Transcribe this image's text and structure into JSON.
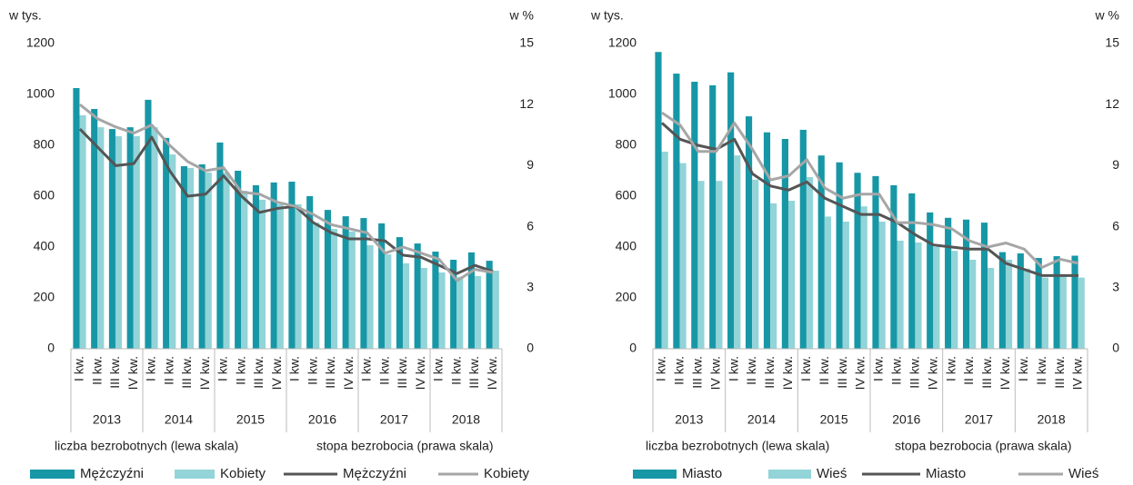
{
  "chart_data": [
    {
      "type": "bar",
      "ylabel": "w tys.",
      "y2label": "w %",
      "ylim": [
        0,
        1200
      ],
      "yticks": [
        0,
        200,
        400,
        600,
        800,
        1000,
        1200
      ],
      "y2lim": [
        0,
        15
      ],
      "y2ticks": [
        0,
        3,
        6,
        9,
        12,
        15
      ],
      "categories": [
        "I kw.",
        "II kw.",
        "III kw.",
        "IV kw.",
        "I kw.",
        "II kw.",
        "III kw.",
        "IV kw.",
        "I kw.",
        "II kw.",
        "III kw.",
        "IV kw.",
        "I kw.",
        "II kw.",
        "III kw.",
        "IV kw.",
        "I kw.",
        "II kw.",
        "III kw.",
        "IV kw.",
        "I kw.",
        "II kw.",
        "III kw.",
        "IV kw."
      ],
      "years": [
        "2013",
        "2014",
        "2015",
        "2016",
        "2017",
        "2018"
      ],
      "annotations": [
        "liczba bezrobotnych (lewa skala)",
        "stopa bezrobocia (prawa skala)"
      ],
      "series": [
        {
          "name": "Mężczyźni",
          "type": "bar",
          "color": "#1797a6",
          "values": [
            1025,
            943,
            864,
            871,
            979,
            829,
            718,
            725,
            811,
            700,
            643,
            654,
            657,
            600,
            546,
            521,
            514,
            493,
            439,
            414,
            382,
            350,
            379,
            346
          ]
        },
        {
          "name": "Kobiety",
          "type": "bar",
          "color": "#92d4d8",
          "values": [
            918,
            871,
            836,
            836,
            871,
            764,
            711,
            693,
            693,
            621,
            586,
            568,
            568,
            496,
            471,
            461,
            407,
            371,
            336,
            318,
            300,
            282,
            286,
            307
          ]
        },
        {
          "name": "Mężczyźni",
          "type": "line",
          "axis": "y2",
          "color": "#555555",
          "values": [
            10.8,
            9.9,
            9.0,
            9.1,
            10.4,
            8.75,
            7.5,
            7.6,
            8.5,
            7.5,
            6.7,
            6.9,
            7.0,
            6.2,
            5.7,
            5.4,
            5.4,
            5.3,
            4.6,
            4.5,
            4.1,
            3.7,
            4.1,
            3.8
          ]
        },
        {
          "name": "Kobiety",
          "type": "line",
          "axis": "y2",
          "color": "#a6a6a6",
          "values": [
            12.0,
            11.3,
            10.9,
            10.6,
            11.0,
            10.0,
            9.2,
            8.75,
            8.9,
            7.7,
            7.6,
            7.2,
            7.0,
            6.6,
            6.1,
            5.9,
            5.7,
            4.7,
            5.0,
            4.7,
            4.4,
            3.35,
            3.9,
            3.75
          ]
        }
      ]
    },
    {
      "type": "bar",
      "ylabel": "w tys.",
      "y2label": "w %",
      "ylim": [
        0,
        1200
      ],
      "yticks": [
        0,
        200,
        400,
        600,
        800,
        1000,
        1200
      ],
      "y2lim": [
        0,
        15
      ],
      "y2ticks": [
        0,
        3,
        6,
        9,
        12,
        15
      ],
      "categories": [
        "I kw.",
        "II kw.",
        "III kw.",
        "IV kw.",
        "I kw.",
        "II kw.",
        "III kw.",
        "IV kw.",
        "I kw.",
        "II kw.",
        "III kw.",
        "IV kw.",
        "I kw.",
        "II kw.",
        "III kw.",
        "IV kw.",
        "I kw.",
        "II kw.",
        "III kw.",
        "IV kw.",
        "I kw.",
        "II kw.",
        "III kw.",
        "IV kw."
      ],
      "years": [
        "2013",
        "2014",
        "2015",
        "2016",
        "2017",
        "2018"
      ],
      "annotations": [
        "liczba bezrobotnych (lewa skala)",
        "stopa bezrobocia (prawa skala)"
      ],
      "series": [
        {
          "name": "Miasto",
          "type": "bar",
          "color": "#1797a6",
          "values": [
            1167,
            1082,
            1050,
            1036,
            1087,
            914,
            851,
            825,
            861,
            760,
            733,
            692,
            679,
            643,
            611,
            536,
            515,
            508,
            496,
            380,
            375,
            357,
            364,
            366
          ]
        },
        {
          "name": "Wieś",
          "type": "bar",
          "color": "#92d4d8",
          "values": [
            775,
            730,
            660,
            660,
            760,
            665,
            572,
            582,
            675,
            520,
            500,
            560,
            500,
            425,
            418,
            400,
            385,
            350,
            318,
            350,
            315,
            280,
            285,
            280
          ]
        },
        {
          "name": "Miasto",
          "type": "line",
          "axis": "y2",
          "color": "#555555",
          "values": [
            11.1,
            10.3,
            10.0,
            9.8,
            10.3,
            8.6,
            8.0,
            7.8,
            8.2,
            7.4,
            7.0,
            6.6,
            6.6,
            6.2,
            5.6,
            5.1,
            5.0,
            4.9,
            4.9,
            4.2,
            3.9,
            3.6,
            3.6,
            3.6
          ]
        },
        {
          "name": "Wieś",
          "type": "line",
          "axis": "y2",
          "color": "#a6a6a6",
          "values": [
            11.6,
            11.0,
            9.7,
            9.7,
            11.1,
            9.8,
            8.3,
            8.5,
            9.3,
            7.9,
            7.4,
            7.6,
            7.6,
            6.2,
            6.2,
            6.1,
            5.9,
            5.3,
            5.0,
            5.2,
            4.9,
            4.0,
            4.4,
            4.2
          ]
        }
      ]
    }
  ]
}
